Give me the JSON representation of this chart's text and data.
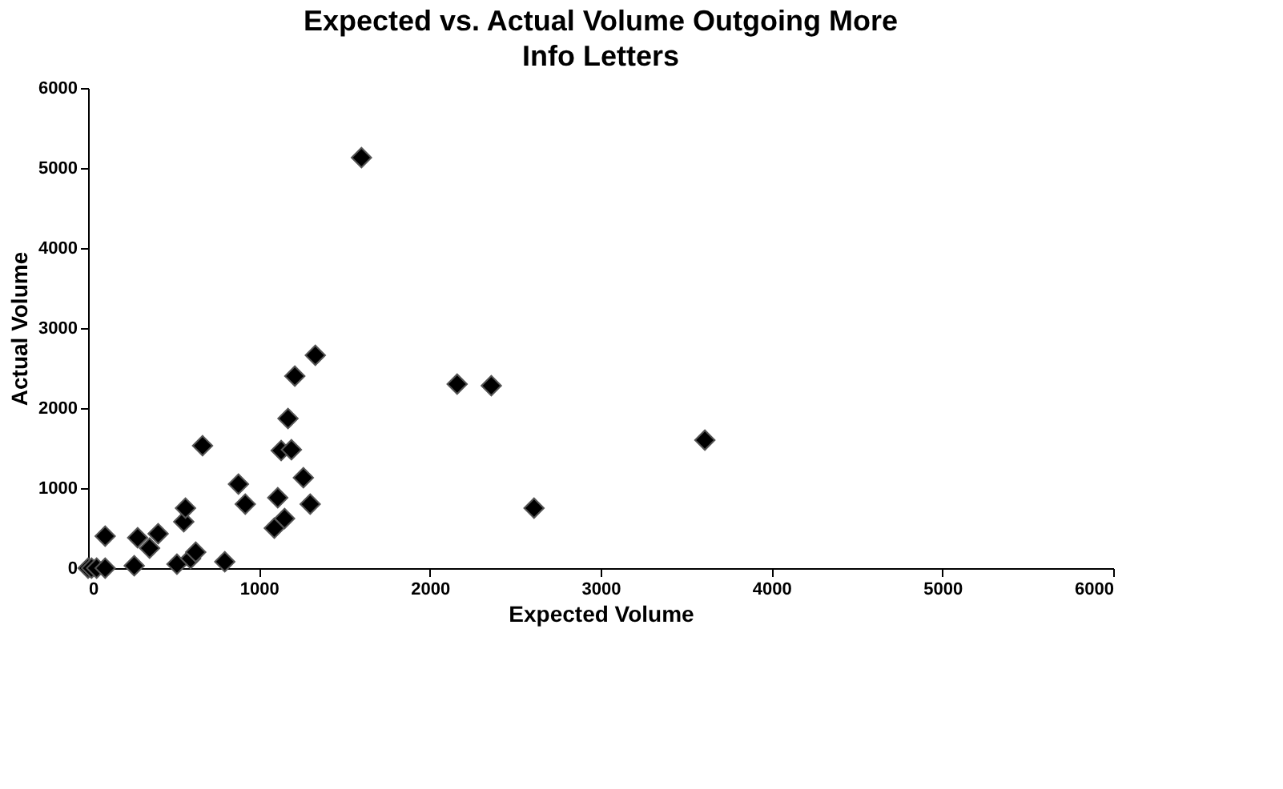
{
  "chart_data": {
    "type": "scatter",
    "title": "Expected vs. Actual Volume Outgoing More Info Letters",
    "xlabel": "Expected Volume",
    "ylabel": "Actual Volume",
    "x": [
      0,
      20,
      50,
      100,
      100,
      270,
      290,
      360,
      410,
      520,
      560,
      570,
      600,
      630,
      670,
      800,
      880,
      920,
      1090,
      1110,
      1130,
      1150,
      1170,
      1190,
      1210,
      1260,
      1300,
      1330,
      1600,
      2160,
      2360,
      2610,
      3610
    ],
    "values": [
      0,
      0,
      0,
      0,
      400,
      30,
      380,
      250,
      430,
      50,
      580,
      750,
      120,
      200,
      1530,
      80,
      1050,
      800,
      500,
      880,
      1470,
      620,
      1870,
      1480,
      2400,
      1130,
      800,
      2660,
      5130,
      2300,
      2280,
      750,
      1600
    ],
    "color": "#000000",
    "marker": "diamond",
    "xlim": [
      0,
      6000
    ],
    "ylim": [
      0,
      6000
    ],
    "xticks": [
      0,
      1000,
      2000,
      3000,
      4000,
      5000,
      6000
    ],
    "yticks": [
      0,
      1000,
      2000,
      3000,
      4000,
      5000,
      6000
    ],
    "grid": false
  }
}
